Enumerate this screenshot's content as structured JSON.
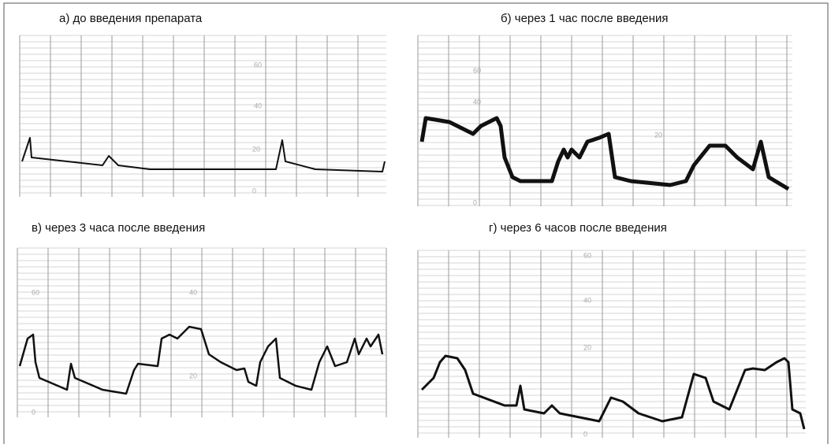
{
  "panels": [
    {
      "caption": "а) до введения препарата",
      "grid_labels": [
        "60",
        "40",
        "20",
        "0"
      ]
    },
    {
      "caption": "б) через 1 час после введения",
      "grid_labels": [
        "60",
        "40",
        "20",
        "0"
      ]
    },
    {
      "caption": "в)  через 3 часа после введения",
      "grid_labels": [
        "60",
        "40",
        "20",
        "0"
      ]
    },
    {
      "caption": "г) через 6 часов после введения",
      "grid_labels": [
        "60",
        "40",
        "20",
        "0"
      ]
    }
  ]
}
